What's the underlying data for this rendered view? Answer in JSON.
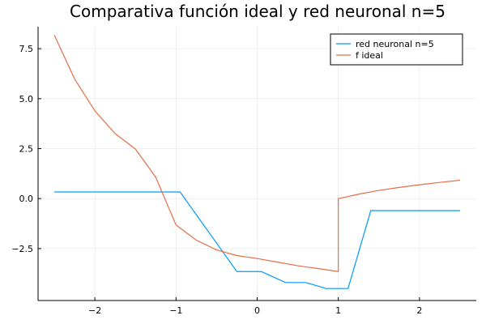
{
  "chart_data": {
    "type": "line",
    "title": "Comparativa función ideal y red neuronal n=5",
    "xlabel": "",
    "ylabel": "",
    "xlim": [
      -2.7,
      2.7
    ],
    "ylim": [
      -5.1,
      8.6
    ],
    "xticks": [
      -2,
      -1,
      0,
      1,
      2
    ],
    "xtick_labels": [
      "−2",
      "−1",
      "0",
      "1",
      "2"
    ],
    "yticks": [
      -2.5,
      0,
      2.5,
      5,
      7.5
    ],
    "ytick_labels": [
      "−2.5",
      "0.0",
      "2.5",
      "5.0",
      "7.5"
    ],
    "grid": true,
    "legend_position": "top-right",
    "series": [
      {
        "name": "red neuronal n=5",
        "color": "#009AFA",
        "x": [
          -2.5,
          -0.95,
          -0.25,
          0.05,
          0.35,
          0.6,
          0.85,
          1.12,
          1.4,
          2.5
        ],
        "y": [
          0.33,
          0.33,
          -3.65,
          -3.65,
          -4.2,
          -4.2,
          -4.5,
          -4.5,
          -0.6,
          -0.6
        ]
      },
      {
        "name": "f ideal",
        "color": "#E26F46",
        "x": [
          -2.5,
          -2.25,
          -2.0,
          -1.75,
          -1.5,
          -1.25,
          -1.0,
          -0.75,
          -0.5,
          -0.25,
          0.0,
          0.25,
          0.5,
          0.75,
          1.0,
          1.0,
          1.25,
          1.5,
          1.75,
          2.0,
          2.25,
          2.5
        ],
        "y": [
          8.18,
          5.99,
          4.39,
          3.25,
          2.48,
          1.07,
          -1.32,
          -2.08,
          -2.57,
          -2.85,
          -3.0,
          -3.18,
          -3.36,
          -3.5,
          -3.65,
          0.0,
          0.22,
          0.41,
          0.56,
          0.69,
          0.81,
          0.92
        ]
      }
    ]
  }
}
